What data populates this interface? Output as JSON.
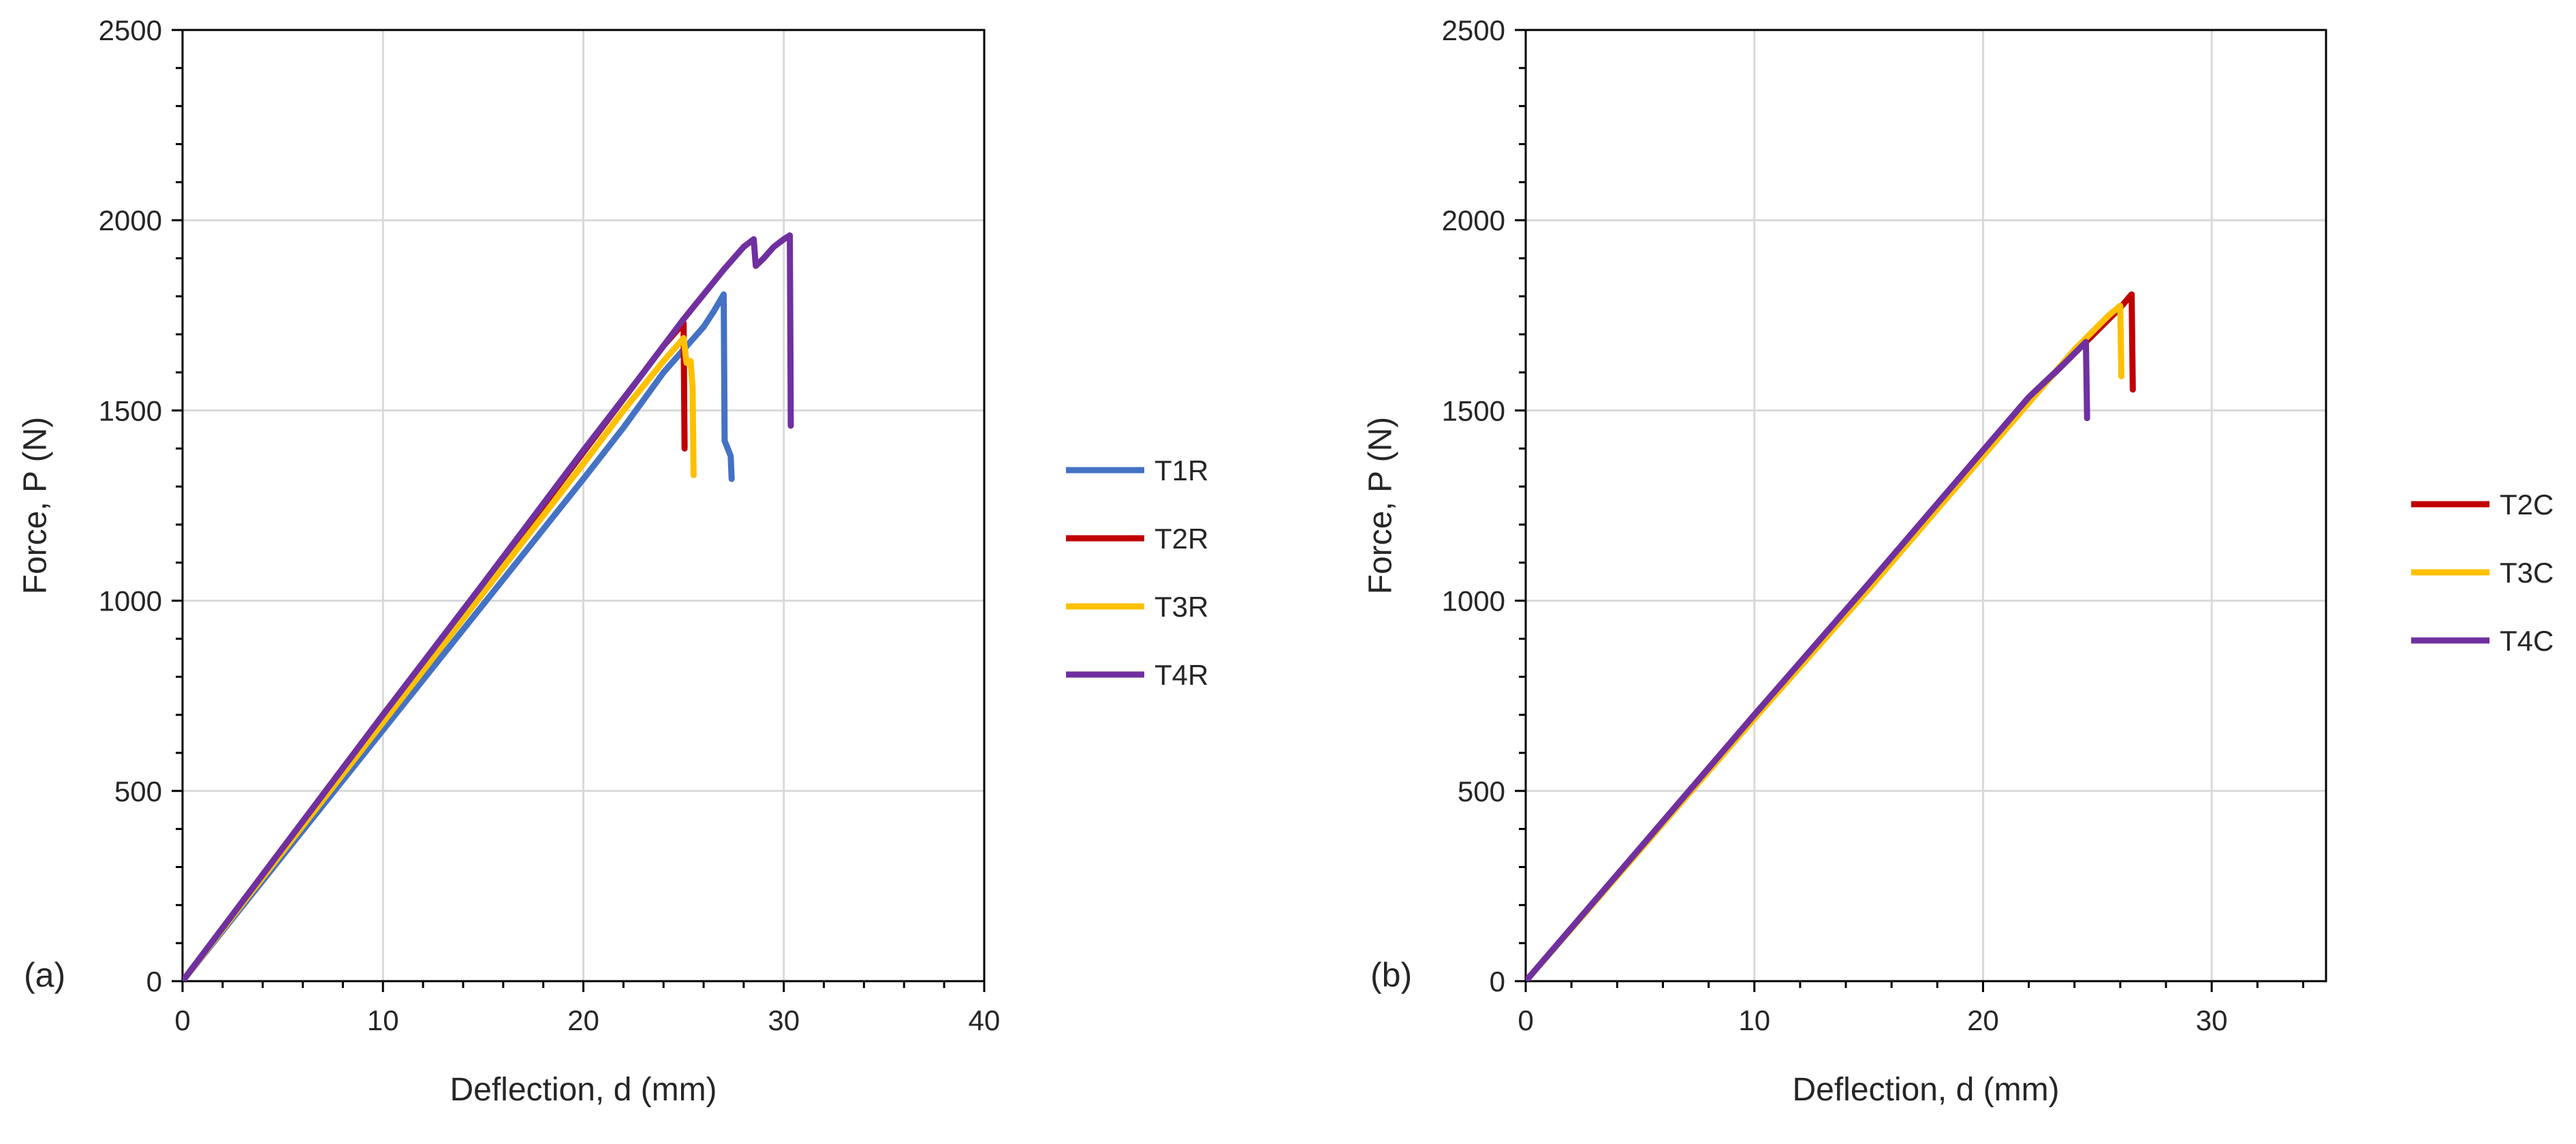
{
  "chart_data": [
    {
      "type": "line",
      "panel_label": "(a)",
      "title": "",
      "xlabel": "Deflection, d (mm)",
      "ylabel": "Force, P (N)",
      "xlim": [
        0,
        40
      ],
      "ylim": [
        0,
        2500
      ],
      "x_ticks": [
        0,
        10,
        20,
        30,
        40
      ],
      "y_ticks": [
        0,
        500,
        1000,
        1500,
        2000,
        2500
      ],
      "grid": true,
      "legend_position": "right",
      "series": [
        {
          "name": "T1R",
          "color": "#4472C4",
          "points": [
            [
              0,
              0
            ],
            [
              5,
              330
            ],
            [
              10,
              660
            ],
            [
              15,
              990
            ],
            [
              20,
              1320
            ],
            [
              22,
              1455
            ],
            [
              24,
              1600
            ],
            [
              25,
              1660
            ],
            [
              26,
              1720
            ],
            [
              26.5,
              1760
            ],
            [
              27,
              1805
            ],
            [
              27.05,
              1420
            ],
            [
              27.2,
              1400
            ],
            [
              27.35,
              1380
            ],
            [
              27.4,
              1320
            ]
          ]
        },
        {
          "name": "T2R",
          "color": "#C00000",
          "points": [
            [
              0,
              0
            ],
            [
              5,
              350
            ],
            [
              10,
              700
            ],
            [
              15,
              1040
            ],
            [
              20,
              1390
            ],
            [
              22,
              1530
            ],
            [
              24,
              1670
            ],
            [
              25,
              1730
            ],
            [
              25.05,
              1400
            ]
          ]
        },
        {
          "name": "T3R",
          "color": "#FFC000",
          "points": [
            [
              0,
              0
            ],
            [
              5,
              340
            ],
            [
              10,
              680
            ],
            [
              15,
              1020
            ],
            [
              20,
              1360
            ],
            [
              22,
              1500
            ],
            [
              24,
              1630
            ],
            [
              25,
              1690
            ],
            [
              25.15,
              1625
            ],
            [
              25.35,
              1630
            ],
            [
              25.45,
              1560
            ],
            [
              25.5,
              1330
            ]
          ]
        },
        {
          "name": "T4R",
          "color": "#7030A0",
          "points": [
            [
              0,
              0
            ],
            [
              5,
              350
            ],
            [
              10,
              700
            ],
            [
              15,
              1045
            ],
            [
              20,
              1395
            ],
            [
              23,
              1600
            ],
            [
              25,
              1740
            ],
            [
              27,
              1870
            ],
            [
              28,
              1930
            ],
            [
              28.5,
              1950
            ],
            [
              28.6,
              1880
            ],
            [
              29,
              1900
            ],
            [
              29.5,
              1930
            ],
            [
              30,
              1950
            ],
            [
              30.3,
              1960
            ],
            [
              30.35,
              1460
            ]
          ]
        }
      ]
    },
    {
      "type": "line",
      "panel_label": "(b)",
      "title": "",
      "xlabel": "Deflection, d (mm)",
      "ylabel": "Force, P (N)",
      "xlim": [
        0,
        35
      ],
      "ylim": [
        0,
        2500
      ],
      "x_ticks": [
        0,
        10,
        20,
        30
      ],
      "y_ticks": [
        0,
        500,
        1000,
        1500,
        2000,
        2500
      ],
      "grid": true,
      "legend_position": "right",
      "series": [
        {
          "name": "T2C",
          "color": "#C00000",
          "points": [
            [
              0,
              0
            ],
            [
              5,
              350
            ],
            [
              10,
              700
            ],
            [
              15,
              1040
            ],
            [
              20,
              1390
            ],
            [
              22,
              1530
            ],
            [
              24,
              1650
            ],
            [
              25,
              1710
            ],
            [
              26,
              1770
            ],
            [
              26.5,
              1805
            ],
            [
              26.55,
              1555
            ]
          ]
        },
        {
          "name": "T3C",
          "color": "#FFC000",
          "points": [
            [
              0,
              0
            ],
            [
              5,
              345
            ],
            [
              10,
              690
            ],
            [
              15,
              1030
            ],
            [
              20,
              1380
            ],
            [
              22,
              1520
            ],
            [
              24,
              1660
            ],
            [
              25,
              1720
            ],
            [
              25.5,
              1750
            ],
            [
              26,
              1775
            ],
            [
              26.05,
              1590
            ]
          ]
        },
        {
          "name": "T4C",
          "color": "#7030A0",
          "points": [
            [
              0,
              0
            ],
            [
              5,
              350
            ],
            [
              10,
              700
            ],
            [
              15,
              1045
            ],
            [
              20,
              1395
            ],
            [
              22,
              1535
            ],
            [
              23.5,
              1620
            ],
            [
              24.5,
              1680
            ],
            [
              24.55,
              1480
            ]
          ]
        }
      ]
    }
  ]
}
